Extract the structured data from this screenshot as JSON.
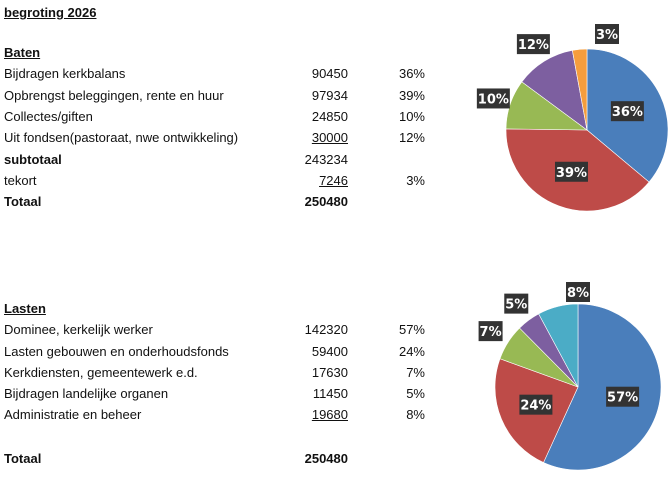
{
  "title": "begroting 2026",
  "baten": {
    "heading": "Baten",
    "rows": [
      {
        "label": "Bijdragen kerkbalans",
        "value": "90450",
        "pct": "36%"
      },
      {
        "label": "Opbrengst beleggingen, rente en huur",
        "value": "97934",
        "pct": "39%"
      },
      {
        "label": "Collectes/giften",
        "value": "24850",
        "pct": "10%"
      },
      {
        "label": "Uit fondsen(pastoraat, nwe ontwikkeling)",
        "value": "30000",
        "pct": "12%"
      }
    ],
    "subtotal_label": "subtotaal",
    "subtotal_value": "243234",
    "tekort_label": "tekort",
    "tekort_value": "7246",
    "tekort_pct": "3%",
    "total_label": "Totaal",
    "total_value": "250480"
  },
  "lasten": {
    "heading": "Lasten",
    "rows": [
      {
        "label": "Dominee, kerkelijk werker",
        "value": "142320",
        "pct": "57%"
      },
      {
        "label": "Lasten gebouwen en onderhoudsfonds",
        "value": "59400",
        "pct": "24%"
      },
      {
        "label": "Kerkdiensten, gemeentewerk e.d.",
        "value": "17630",
        "pct": "7%"
      },
      {
        "label": "Bijdragen landelijke organen",
        "value": "11450",
        "pct": "5%"
      },
      {
        "label": "Administratie en beheer",
        "value": "19680",
        "pct": "8%"
      }
    ],
    "total_label": "Totaal",
    "total_value": "250480"
  },
  "chart_data": [
    {
      "type": "pie",
      "title": "Baten",
      "categories": [
        "Bijdragen kerkbalans",
        "Opbrengst beleggingen, rente en huur",
        "Collectes/giften",
        "Uit fondsen(pastoraat, nwe ontwikkeling)",
        "tekort"
      ],
      "values": [
        90450,
        97934,
        24850,
        30000,
        7246
      ],
      "labels": [
        "36%",
        "39%",
        "10%",
        "12%",
        "3%"
      ],
      "colors": [
        "#4a7ebb",
        "#be4b48",
        "#98b954",
        "#7d5fa0",
        "#f59d3d"
      ]
    },
    {
      "type": "pie",
      "title": "Lasten",
      "categories": [
        "Dominee, kerkelijk werker",
        "Lasten gebouwen en onderhoudsfonds",
        "Kerkdiensten, gemeentewerk e.d.",
        "Bijdragen landelijke organen",
        "Administratie en beheer"
      ],
      "values": [
        142320,
        59400,
        17630,
        11450,
        19680
      ],
      "labels": [
        "57%",
        "24%",
        "7%",
        "5%",
        "8%"
      ],
      "colors": [
        "#4a7ebb",
        "#be4b48",
        "#98b954",
        "#7d5fa0",
        "#4bacc6"
      ]
    }
  ]
}
